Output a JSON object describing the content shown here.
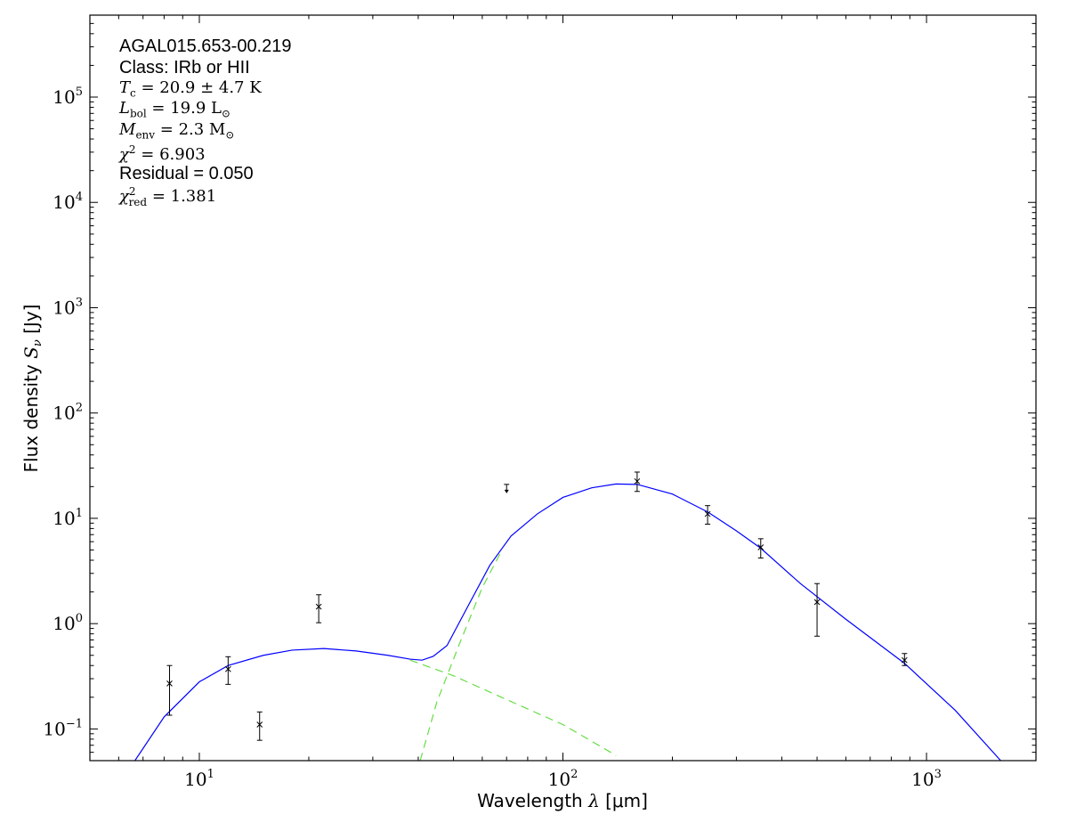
{
  "chart_data": {
    "type": "scatter",
    "xlabel_prefix": "Wavelength",
    "xlabel_symbol": "λ",
    "xlabel_unit": "[μm]",
    "ylabel_prefix": "Flux density",
    "ylabel_symbol": "S",
    "ylabel_sub": "ν",
    "ylabel_unit": "[Jy]",
    "x_scale": "log",
    "y_scale": "log",
    "xlim": [
      5,
      2000
    ],
    "ylim": [
      0.05,
      600000
    ],
    "grid": false,
    "x_ticks": [
      {
        "base": "10",
        "exp": "1",
        "value": 10
      },
      {
        "base": "10",
        "exp": "2",
        "value": 100
      },
      {
        "base": "10",
        "exp": "3",
        "value": 1000
      }
    ],
    "y_ticks": [
      {
        "base": "10",
        "exp": "−1",
        "value": 0.1
      },
      {
        "base": "10",
        "exp": "0",
        "value": 1
      },
      {
        "base": "10",
        "exp": "1",
        "value": 10
      },
      {
        "base": "10",
        "exp": "2",
        "value": 100
      },
      {
        "base": "10",
        "exp": "3",
        "value": 1000
      },
      {
        "base": "10",
        "exp": "4",
        "value": 10000
      },
      {
        "base": "10",
        "exp": "5",
        "value": 100000
      }
    ],
    "measurements": [
      {
        "x": 8.28,
        "y": 0.27,
        "ylo": 0.135,
        "yhi": 0.4
      },
      {
        "x": 12.0,
        "y": 0.37,
        "ylo": 0.265,
        "yhi": 0.485
      },
      {
        "x": 14.65,
        "y": 0.11,
        "ylo": 0.078,
        "yhi": 0.145
      },
      {
        "x": 21.3,
        "y": 1.45,
        "ylo": 1.02,
        "yhi": 1.88
      }
    ],
    "upper_limits": [
      {
        "x": 70.0,
        "y": 21.0
      }
    ],
    "measurements_far": [
      {
        "x": 160.0,
        "y": 22.5,
        "ylo": 18.0,
        "yhi": 27.5
      },
      {
        "x": 250.0,
        "y": 11.0,
        "ylo": 8.8,
        "yhi": 13.2
      },
      {
        "x": 350.0,
        "y": 5.3,
        "ylo": 4.2,
        "yhi": 6.4
      },
      {
        "x": 500.0,
        "y": 1.6,
        "ylo": 0.76,
        "yhi": 2.4
      },
      {
        "x": 870.0,
        "y": 0.45,
        "ylo": 0.4,
        "yhi": 0.52
      }
    ],
    "total_model": [
      {
        "x": 6.65,
        "y": 0.05
      },
      {
        "x": 8.0,
        "y": 0.13
      },
      {
        "x": 10.0,
        "y": 0.28
      },
      {
        "x": 12.0,
        "y": 0.4
      },
      {
        "x": 15.0,
        "y": 0.5
      },
      {
        "x": 18.0,
        "y": 0.56
      },
      {
        "x": 22.0,
        "y": 0.58
      },
      {
        "x": 27.0,
        "y": 0.55
      },
      {
        "x": 33.0,
        "y": 0.5
      },
      {
        "x": 38.0,
        "y": 0.46
      },
      {
        "x": 41.0,
        "y": 0.45
      },
      {
        "x": 44.0,
        "y": 0.49
      },
      {
        "x": 48.0,
        "y": 0.62
      },
      {
        "x": 55.0,
        "y": 1.5
      },
      {
        "x": 63.0,
        "y": 3.6
      },
      {
        "x": 72.0,
        "y": 6.8
      },
      {
        "x": 85.0,
        "y": 11.0
      },
      {
        "x": 100.0,
        "y": 15.8
      },
      {
        "x": 120.0,
        "y": 19.5
      },
      {
        "x": 140.0,
        "y": 21.2
      },
      {
        "x": 160.0,
        "y": 21.0
      },
      {
        "x": 200.0,
        "y": 17.0
      },
      {
        "x": 250.0,
        "y": 11.5
      },
      {
        "x": 300.0,
        "y": 7.6
      },
      {
        "x": 350.0,
        "y": 5.2
      },
      {
        "x": 450.0,
        "y": 2.4
      },
      {
        "x": 600.0,
        "y": 1.1
      },
      {
        "x": 870.0,
        "y": 0.42
      },
      {
        "x": 1200.0,
        "y": 0.15
      },
      {
        "x": 1600.0,
        "y": 0.05
      }
    ],
    "warm_component": [
      {
        "x": 38.0,
        "y": 0.45
      },
      {
        "x": 50.0,
        "y": 0.32
      },
      {
        "x": 70.0,
        "y": 0.19
      },
      {
        "x": 100.0,
        "y": 0.11
      },
      {
        "x": 140.0,
        "y": 0.056
      }
    ],
    "cold_component": [
      {
        "x": 40.5,
        "y": 0.05
      },
      {
        "x": 45.0,
        "y": 0.18
      },
      {
        "x": 52.0,
        "y": 0.65
      },
      {
        "x": 60.0,
        "y": 2.2
      },
      {
        "x": 68.0,
        "y": 5.0
      }
    ],
    "colors": {
      "model": "#0000ff",
      "components": "#66dd44",
      "points": "#000000"
    }
  },
  "annotations": {
    "source": "AGAL015.653-00.219",
    "class_label": "Class: IRb or HII",
    "tc_symbol": "T",
    "tc_sub": "c",
    "tc_value": " = 20.9 ± 4.7 K",
    "lbol_symbol": "L",
    "lbol_sub": "bol",
    "lbol_value": " = 19.9 L",
    "lbol_unit_sub": "⊙",
    "menv_symbol": "M",
    "menv_sub": "env",
    "menv_value": " = 2.3 M",
    "menv_unit_sub": "⊙",
    "chi2_symbol": "χ",
    "chi2_sup": "2",
    "chi2_value": " = 6.903",
    "residual": "Residual = 0.050",
    "chi2red_symbol": "χ",
    "chi2red_sup": "2",
    "chi2red_sub": "red",
    "chi2red_value": " = 1.381"
  }
}
